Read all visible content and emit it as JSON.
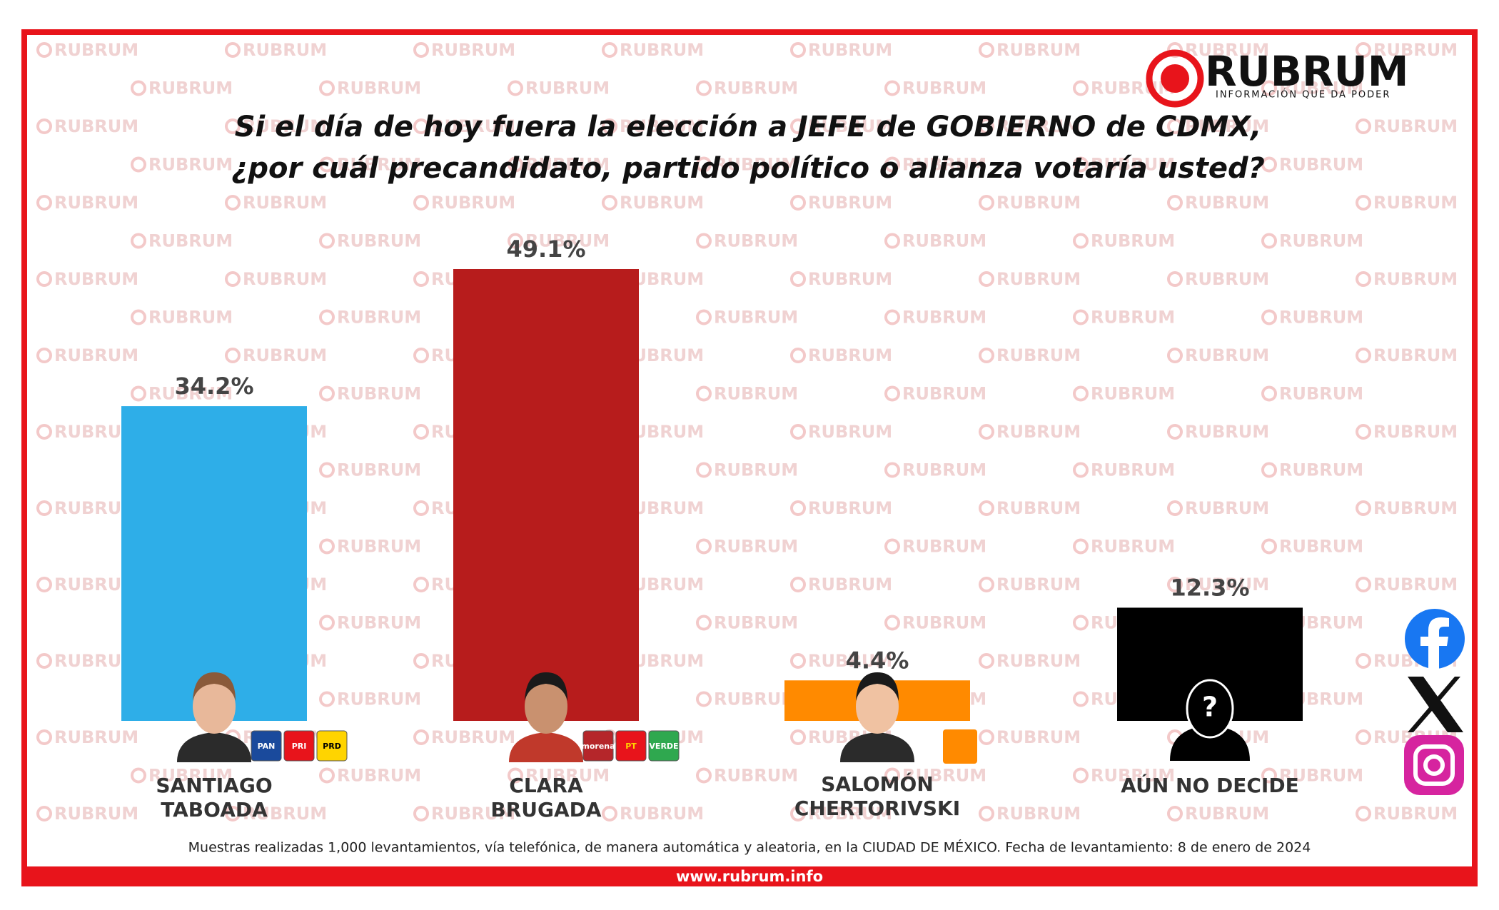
{
  "chart_data": {
    "type": "bar",
    "title": [
      "Si el día de hoy fuera la elección a JEFE de GOBIERNO de CDMX,",
      "¿por cuál precandidato, partido político o alianza votaría usted?"
    ],
    "categories": [
      "SANTIAGO\nTABOADA",
      "CLARA\nBRUGADA",
      "SALOMÓN\nCHERTORIVSKI",
      "AÚN NO DECIDE"
    ],
    "values": [
      34.2,
      49.1,
      4.4,
      12.3
    ],
    "value_labels": [
      "34.2%",
      "49.1%",
      "4.4%",
      "12.3%"
    ],
    "colors": [
      "#2eaee8",
      "#b71c1c",
      "#ff8a00",
      "#000000"
    ],
    "party_logos": [
      [
        "PAN",
        "PRI",
        "PRD"
      ],
      [
        "morena",
        "PT",
        "VERDE"
      ],
      [],
      []
    ],
    "unknown_icon": "?",
    "brand": "RUBRUM",
    "brand_tagline": "INFORMACIÓN QUE DA PODER",
    "watermark": "RUBRUM",
    "note": "Muestras realizadas 1,000 levantamientos, vía telefónica, de manera automática y aleatoria, en la CIUDAD DE MÉXICO. Fecha de levantamiento: 8 de enero de 2024",
    "website": "www.rubrum.info"
  }
}
